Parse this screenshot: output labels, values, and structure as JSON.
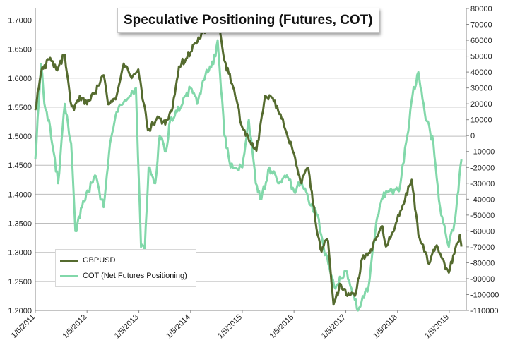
{
  "chart_data": {
    "type": "line",
    "title": "Speculative Positioning (Futures, COT)",
    "x_tick_labels": [
      "1/5/2011",
      "1/5/2012",
      "1/5/2013",
      "1/5/2014",
      "1/5/2015",
      "1/5/2016",
      "1/5/2017",
      "1/5/2018",
      "1/5/2019"
    ],
    "y_left": {
      "ylim": [
        1.2,
        1.72
      ],
      "tick_labels": [
        "1.2000",
        "1.2500",
        "1.3000",
        "1.3500",
        "1.4000",
        "1.4500",
        "1.5000",
        "1.5500",
        "1.6000",
        "1.6500",
        "1.7000"
      ],
      "tick_values": [
        1.2,
        1.25,
        1.3,
        1.35,
        1.4,
        1.45,
        1.5,
        1.55,
        1.6,
        1.65,
        1.7
      ]
    },
    "y_right": {
      "ylim": [
        -110000,
        80000
      ],
      "tick_labels": [
        "80000",
        "70000",
        "60000",
        "50000",
        "40000",
        "30000",
        "20000",
        "10000",
        "0",
        "-10000",
        "-20000",
        "-30000",
        "-40000",
        "-50000",
        "-60000",
        "-70000",
        "-80000",
        "-90000",
        "-100000",
        "-110000"
      ],
      "tick_values": [
        80000,
        70000,
        60000,
        50000,
        40000,
        30000,
        20000,
        10000,
        0,
        -10000,
        -20000,
        -30000,
        -40000,
        -50000,
        -60000,
        -70000,
        -80000,
        -90000,
        -100000,
        -110000
      ]
    },
    "grid": true,
    "legend_position": "bottom-left",
    "series": [
      {
        "name": "GBPUSD",
        "axis": "left",
        "color": "#556b2f",
        "x": [
          "2011-01-05",
          "2011-02-15",
          "2011-04-20",
          "2011-06-01",
          "2011-08-01",
          "2011-09-10",
          "2011-10-05",
          "2011-11-15",
          "2012-01-05",
          "2012-03-01",
          "2012-05-01",
          "2012-06-01",
          "2012-08-01",
          "2012-09-20",
          "2012-11-15",
          "2013-01-01",
          "2013-03-10",
          "2013-05-10",
          "2013-07-10",
          "2013-09-01",
          "2013-10-15",
          "2014-01-05",
          "2014-03-01",
          "2014-05-01",
          "2014-07-15",
          "2014-09-01",
          "2014-11-01",
          "2015-01-05",
          "2015-03-10",
          "2015-04-15",
          "2015-06-15",
          "2015-08-15",
          "2015-10-10",
          "2016-01-05",
          "2016-02-20",
          "2016-04-15",
          "2016-06-20",
          "2016-07-10",
          "2016-09-01",
          "2016-10-10",
          "2016-12-01",
          "2017-01-15",
          "2017-03-10",
          "2017-05-01",
          "2017-07-01",
          "2017-09-20",
          "2017-10-15",
          "2018-01-01",
          "2018-04-15",
          "2018-06-01",
          "2018-08-15",
          "2018-10-01",
          "2019-01-02",
          "2019-03-20",
          "2019-04-01"
        ],
        "values": [
          1.545,
          1.61,
          1.635,
          1.615,
          1.64,
          1.56,
          1.545,
          1.57,
          1.555,
          1.575,
          1.605,
          1.555,
          1.57,
          1.625,
          1.6,
          1.615,
          1.51,
          1.53,
          1.52,
          1.55,
          1.62,
          1.645,
          1.67,
          1.685,
          1.715,
          1.63,
          1.585,
          1.515,
          1.485,
          1.475,
          1.57,
          1.56,
          1.53,
          1.47,
          1.42,
          1.445,
          1.33,
          1.305,
          1.32,
          1.21,
          1.245,
          1.225,
          1.225,
          1.29,
          1.305,
          1.345,
          1.31,
          1.355,
          1.425,
          1.33,
          1.28,
          1.31,
          1.265,
          1.33,
          1.31
        ]
      },
      {
        "name": "COT (Net Futures Positioning)",
        "axis": "right",
        "color": "#82d8aa",
        "x": [
          "2011-01-05",
          "2011-02-15",
          "2011-03-10",
          "2011-04-20",
          "2011-06-15",
          "2011-08-01",
          "2011-09-15",
          "2011-10-15",
          "2011-12-01",
          "2012-01-15",
          "2012-03-01",
          "2012-05-01",
          "2012-06-15",
          "2012-08-01",
          "2012-09-15",
          "2012-11-01",
          "2012-12-15",
          "2013-01-20",
          "2013-02-15",
          "2013-03-15",
          "2013-05-01",
          "2013-06-01",
          "2013-07-15",
          "2013-08-15",
          "2013-10-01",
          "2013-12-01",
          "2014-01-05",
          "2014-02-20",
          "2014-04-20",
          "2014-06-15",
          "2014-07-15",
          "2014-09-01",
          "2014-10-15",
          "2015-01-05",
          "2015-02-20",
          "2015-04-10",
          "2015-05-20",
          "2015-07-15",
          "2015-09-15",
          "2015-11-15",
          "2016-01-05",
          "2016-02-20",
          "2016-04-15",
          "2016-06-20",
          "2016-08-01",
          "2016-10-15",
          "2016-12-01",
          "2017-01-05",
          "2017-03-01",
          "2017-04-01",
          "2017-06-15",
          "2017-08-01",
          "2017-09-15",
          "2017-11-01",
          "2018-01-15",
          "2018-03-15",
          "2018-04-20",
          "2018-06-01",
          "2018-07-15",
          "2018-09-15",
          "2018-11-01",
          "2019-01-02",
          "2019-02-10",
          "2019-03-10",
          "2019-04-01"
        ],
        "values": [
          -15000,
          45000,
          20000,
          5000,
          -30000,
          20000,
          -5000,
          -60000,
          -45000,
          -35000,
          -25000,
          -45000,
          -5000,
          15000,
          20000,
          25000,
          30000,
          -70000,
          -73000,
          -20000,
          -30000,
          0,
          -10000,
          10000,
          15000,
          25000,
          30000,
          20000,
          38000,
          45000,
          60000,
          0,
          -20000,
          -20000,
          10000,
          -30000,
          -40000,
          -20000,
          -30000,
          -25000,
          -35000,
          -30000,
          -40000,
          -50000,
          -70000,
          -95000,
          -90000,
          -85000,
          -100000,
          -110000,
          -95000,
          -60000,
          -40000,
          -35000,
          -35000,
          0,
          25000,
          40000,
          15000,
          -5000,
          -45000,
          -70000,
          -55000,
          -35000,
          -15000
        ]
      }
    ]
  }
}
